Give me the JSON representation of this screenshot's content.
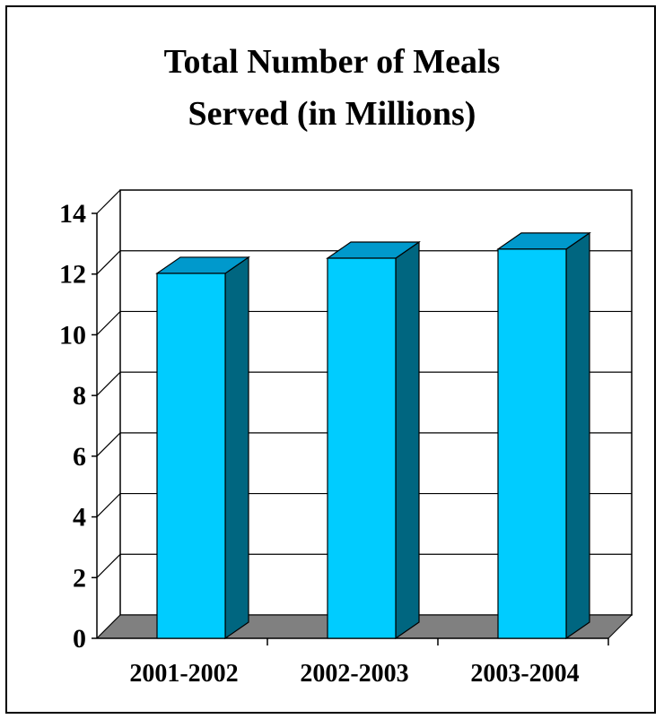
{
  "chart_data": {
    "type": "bar",
    "title_lines": [
      "Total Number of Meals",
      "Served (in Millions)"
    ],
    "categories": [
      "2001-2002",
      "2002-2003",
      "2003-2004"
    ],
    "values": [
      12.2,
      12.7,
      13.0
    ],
    "ylim": [
      0,
      14
    ],
    "yticks": [
      "0",
      "2",
      "4",
      "6",
      "8",
      "10",
      "12",
      "14"
    ],
    "grid": true,
    "three_d": true,
    "colors": {
      "bar_front": "#00ccff",
      "bar_top": "#0099cc",
      "bar_side": "#006680",
      "floor": "#808080"
    }
  }
}
